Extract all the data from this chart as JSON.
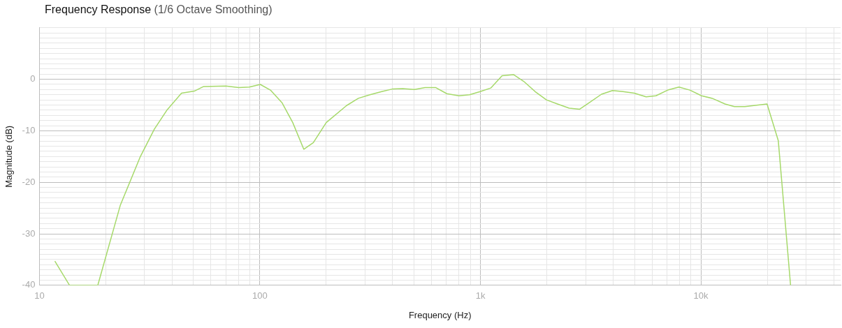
{
  "chart_data": {
    "type": "line",
    "title": "Frequency Response",
    "subtitle": "(1/6 Octave Smoothing)",
    "xlabel": "Frequency (Hz)",
    "ylabel": "Magnitude (dB)",
    "log": "x",
    "grid": true,
    "legend": false,
    "marker": "none",
    "line_style": "solid",
    "x": [
      11.75,
      13.7,
      18.4,
      23.3,
      28.7,
      33.2,
      38.0,
      44.1,
      50.4,
      55.6,
      70.1,
      80.2,
      89.5,
      100.4,
      111.6,
      126.2,
      140.9,
      158.2,
      174.7,
      199.9,
      247.2,
      279.5,
      315.6,
      356.6,
      398,
      444.6,
      502,
      561,
      626,
      704,
      800,
      893,
      997,
      1114,
      1254,
      1413,
      1571,
      1772,
      1993,
      2236,
      2527,
      2821,
      3149,
      3541,
      3972,
      4434,
      4988,
      5641,
      6250,
      7070,
      7950,
      8915,
      10070,
      11250,
      12860,
      14180,
      15830,
      19950,
      22430,
      25500
    ],
    "series": [
      {
        "color": "#a6d96a",
        "values": [
          -35.3,
          -40,
          -40,
          -24.4,
          -15.0,
          -9.7,
          -5.9,
          -2.7,
          -2.3,
          -1.4,
          -1.3,
          -1.6,
          -1.5,
          -1.0,
          -2.1,
          -4.6,
          -8.4,
          -13.6,
          -12.3,
          -8.4,
          -5.1,
          -3.7,
          -3.0,
          -2.4,
          -1.9,
          -1.8,
          -2.0,
          -1.6,
          -1.6,
          -2.8,
          -3.2,
          -3.0,
          -2.4,
          -1.7,
          0.7,
          0.9,
          -0.4,
          -2.4,
          -4.0,
          -4.8,
          -5.6,
          -5.8,
          -4.4,
          -2.9,
          -2.2,
          -2.4,
          -2.7,
          -3.4,
          -3.2,
          -2.1,
          -1.5,
          -2.1,
          -3.2,
          -3.7,
          -4.8,
          -5.3,
          -5.3,
          -4.8,
          -11.9,
          -40
        ]
      }
    ],
    "xlim": [
      10,
      43000
    ],
    "xticks": [
      10,
      {
        "value": 20,
        "label": null
      },
      {
        "value": 30,
        "label": null
      },
      {
        "value": 40,
        "label": null
      },
      {
        "value": 50,
        "label": null
      },
      {
        "value": 60,
        "label": null
      },
      {
        "value": 70,
        "label": null
      },
      {
        "value": 80,
        "label": null
      },
      {
        "value": 90,
        "label": null
      },
      100,
      {
        "value": 200,
        "label": null
      },
      {
        "value": 300,
        "label": null
      },
      {
        "value": 400,
        "label": null
      },
      {
        "value": 500,
        "label": null
      },
      {
        "value": 600,
        "label": null
      },
      {
        "value": 700,
        "label": null
      },
      {
        "value": 800,
        "label": null
      },
      {
        "value": 900,
        "label": null
      },
      {
        "value": 1000,
        "label": "1k"
      },
      {
        "value": 2000,
        "label": null
      },
      {
        "value": 3000,
        "label": null
      },
      {
        "value": 4000,
        "label": null
      },
      {
        "value": 5000,
        "label": null
      },
      {
        "value": 6000,
        "label": null
      },
      {
        "value": 7000,
        "label": null
      },
      {
        "value": 8000,
        "label": null
      },
      {
        "value": 9000,
        "label": null
      },
      {
        "value": 10000,
        "label": "10k"
      },
      {
        "value": 20000,
        "label": null
      },
      {
        "value": 30000,
        "label": null
      },
      {
        "value": 40000,
        "label": null
      }
    ],
    "ylim": [
      -40,
      10
    ],
    "yticks": [
      -40,
      {
        "value": -39,
        "label": null
      },
      {
        "value": -38,
        "label": null
      },
      {
        "value": -37,
        "label": null
      },
      {
        "value": -36,
        "label": null
      },
      {
        "value": -35,
        "label": null
      },
      {
        "value": -34,
        "label": null
      },
      {
        "value": -33,
        "label": null
      },
      {
        "value": -32,
        "label": null
      },
      {
        "value": -31,
        "label": null
      },
      -30,
      {
        "value": -29,
        "label": null
      },
      {
        "value": -28,
        "label": null
      },
      {
        "value": -27,
        "label": null
      },
      {
        "value": -26,
        "label": null
      },
      {
        "value": -25,
        "label": null
      },
      {
        "value": -24,
        "label": null
      },
      {
        "value": -23,
        "label": null
      },
      {
        "value": -22,
        "label": null
      },
      {
        "value": -21,
        "label": null
      },
      -20,
      {
        "value": -19,
        "label": null
      },
      {
        "value": -18,
        "label": null
      },
      {
        "value": -17,
        "label": null
      },
      {
        "value": -16,
        "label": null
      },
      {
        "value": -15,
        "label": null
      },
      {
        "value": -14,
        "label": null
      },
      {
        "value": -13,
        "label": null
      },
      {
        "value": -12,
        "label": null
      },
      {
        "value": -11,
        "label": null
      },
      -10,
      {
        "value": -9,
        "label": null
      },
      {
        "value": -8,
        "label": null
      },
      {
        "value": -7,
        "label": null
      },
      {
        "value": -6,
        "label": null
      },
      {
        "value": -5,
        "label": null
      },
      {
        "value": -4,
        "label": null
      },
      {
        "value": -3,
        "label": null
      },
      {
        "value": -2,
        "label": null
      },
      {
        "value": -1,
        "label": null
      },
      0,
      {
        "value": 1,
        "label": null
      },
      {
        "value": 2,
        "label": null
      },
      {
        "value": 3,
        "label": null
      },
      {
        "value": 4,
        "label": null
      },
      {
        "value": 5,
        "label": null
      },
      {
        "value": 6,
        "label": null
      },
      {
        "value": 7,
        "label": null
      },
      {
        "value": 8,
        "label": null
      },
      {
        "value": 9,
        "label": null
      },
      {
        "value": 10,
        "label": null
      }
    ]
  }
}
